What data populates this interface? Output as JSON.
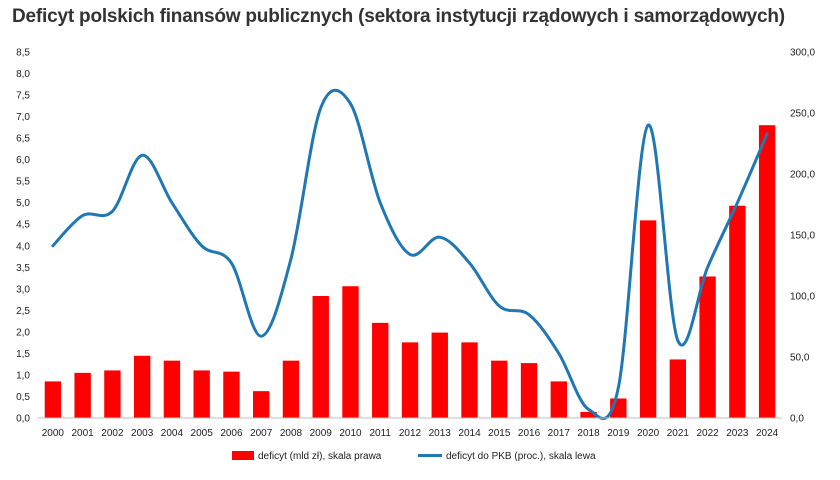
{
  "chart_data": {
    "type": "bar+line",
    "title": "Deficyt polskich finansów publicznych (sektora instytucji rządowych i samorządowych)",
    "categories": [
      "2000",
      "2001",
      "2002",
      "2003",
      "2004",
      "2005",
      "2006",
      "2007",
      "2008",
      "2009",
      "2010",
      "2011",
      "2012",
      "2013",
      "2014",
      "2015",
      "2016",
      "2017",
      "2018",
      "2019",
      "2020",
      "2021",
      "2022",
      "2023",
      "2024"
    ],
    "series": [
      {
        "name": "deficyt (mld zł), skala prawa",
        "type": "bar",
        "axis": "right",
        "color": "#ff0000",
        "values": [
          30,
          37,
          39,
          51,
          47,
          39,
          38,
          22,
          47,
          100,
          108,
          78,
          62,
          70,
          62,
          47,
          45,
          30,
          5,
          16,
          162,
          48,
          116,
          174,
          240
        ]
      },
      {
        "name": "deficyt do PKB (proc.), skala lewa",
        "type": "line",
        "axis": "left",
        "color": "#1f77b4",
        "values": [
          4.0,
          4.7,
          4.8,
          6.1,
          5.0,
          4.0,
          3.6,
          1.9,
          3.7,
          7.2,
          7.3,
          5.0,
          3.8,
          4.2,
          3.6,
          2.6,
          2.4,
          1.5,
          0.2,
          0.7,
          6.8,
          1.8,
          3.5,
          5.0,
          6.6
        ]
      }
    ],
    "y_left": {
      "min": 0,
      "max": 8.5,
      "step": 0.5,
      "ticks": [
        "0,0",
        "0,5",
        "1,0",
        "1,5",
        "2,0",
        "2,5",
        "3,0",
        "3,5",
        "4,0",
        "4,5",
        "5,0",
        "5,5",
        "6,0",
        "6,5",
        "7,0",
        "7,5",
        "8,0",
        "8,5"
      ]
    },
    "y_right": {
      "min": 0,
      "max": 300,
      "step": 50,
      "ticks": [
        "0,0",
        "50,0",
        "100,0",
        "150,0",
        "200,0",
        "250,0",
        "300,0"
      ]
    },
    "grid": false,
    "legend_position": "bottom"
  }
}
